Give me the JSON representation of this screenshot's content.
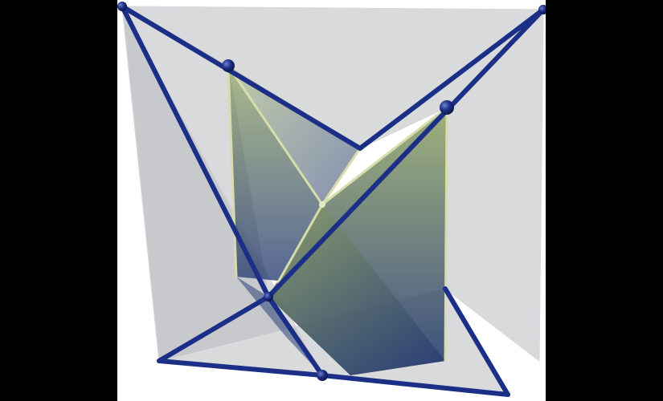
{
  "figure": {
    "subject": "",
    "colors": {
      "frame_background": "#000000",
      "canvas_background": "#ffffff",
      "outer_faces": "#b9bcc0",
      "inner_surface_top": "#8fa364",
      "inner_surface_bottom": "#1f3570",
      "inner_edges": "#d6dcaa",
      "frame_edges": "#1c2f86",
      "vertex_spheres": "#1c2f86"
    },
    "icons": {
      "vertex": "sphere-vertex-icon"
    }
  }
}
